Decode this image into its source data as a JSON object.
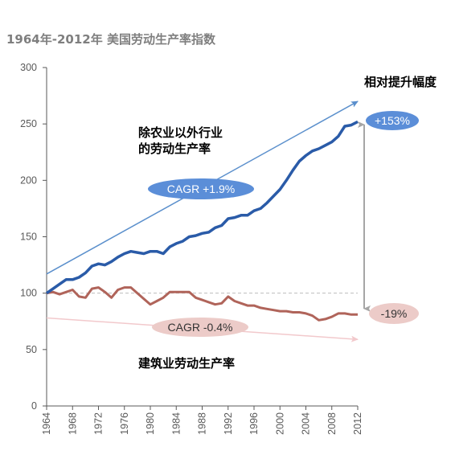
{
  "title": "1964年-2012年 美国劳动生产率指数",
  "annotations": {
    "relative_increase_label": "相对提升幅度",
    "nonfarm_label": "除农业以外行业\n的劳动生产率",
    "construction_label": "建筑业劳动生产率",
    "cagr_nonfarm": "CAGR +1.9%",
    "cagr_construction": "CAGR -0.4%",
    "nonfarm_change": "+153%",
    "construction_change": "-19%"
  },
  "colors": {
    "nonfarm_series": "#2a5ba8",
    "construction_series": "#b0645a",
    "nonfarm_badge": "#5b8ed8",
    "construction_badge": "#eccbc8",
    "up_trend_arrow": "#5a8fcc",
    "down_trend_arrow": "#f2c9cc",
    "axis": "#595959",
    "reference_line": "#bdbdbd",
    "vertical_arrow": "#a6a6a6"
  },
  "chart_data": {
    "type": "line",
    "title": "1964年-2012年 美国劳动生产率指数",
    "xlabel": "",
    "ylabel": "",
    "xlim": [
      1964,
      2012
    ],
    "ylim": [
      0,
      300
    ],
    "x_ticks": [
      1964,
      1968,
      1972,
      1976,
      1980,
      1984,
      1988,
      1992,
      1996,
      2000,
      2004,
      2008,
      2012
    ],
    "y_ticks": [
      0,
      50,
      100,
      150,
      200,
      250,
      300
    ],
    "grid": false,
    "reference_line": 100,
    "x": [
      1964,
      1965,
      1966,
      1967,
      1968,
      1969,
      1970,
      1971,
      1972,
      1973,
      1974,
      1975,
      1976,
      1977,
      1978,
      1979,
      1980,
      1981,
      1982,
      1983,
      1984,
      1985,
      1986,
      1987,
      1988,
      1989,
      1990,
      1991,
      1992,
      1993,
      1994,
      1995,
      1996,
      1997,
      1998,
      1999,
      2000,
      2001,
      2002,
      2003,
      2004,
      2005,
      2006,
      2007,
      2008,
      2009,
      2010,
      2011,
      2012
    ],
    "series": [
      {
        "name": "除农业以外行业的劳动生产率",
        "values": [
          100,
          104,
          108,
          112,
          112,
          114,
          118,
          124,
          126,
          125,
          128,
          132,
          135,
          137,
          136,
          135,
          137,
          137,
          135,
          141,
          144,
          146,
          150,
          151,
          153,
          154,
          158,
          160,
          166,
          167,
          169,
          169,
          173,
          175,
          180,
          186,
          192,
          200,
          209,
          217,
          222,
          226,
          228,
          231,
          234,
          239,
          248,
          249,
          252
        ]
      },
      {
        "name": "建筑业劳动生产率",
        "values": [
          100,
          101,
          99,
          101,
          103,
          97,
          96,
          104,
          105,
          101,
          96,
          103,
          105,
          105,
          100,
          95,
          90,
          93,
          96,
          101,
          101,
          101,
          101,
          96,
          94,
          92,
          90,
          91,
          97,
          93,
          91,
          89,
          89,
          87,
          86,
          85,
          84,
          84,
          83,
          83,
          82,
          80,
          76,
          77,
          79,
          82,
          82,
          81,
          81
        ]
      }
    ],
    "trend_lines": [
      {
        "label": "CAGR +1.9%",
        "from": [
          1964,
          117
        ],
        "to": [
          2012,
          270
        ]
      },
      {
        "label": "CAGR -0.4%",
        "from": [
          1964,
          78
        ],
        "to": [
          2012,
          59
        ]
      }
    ],
    "change_labels": [
      "+153%",
      "-19%"
    ]
  }
}
